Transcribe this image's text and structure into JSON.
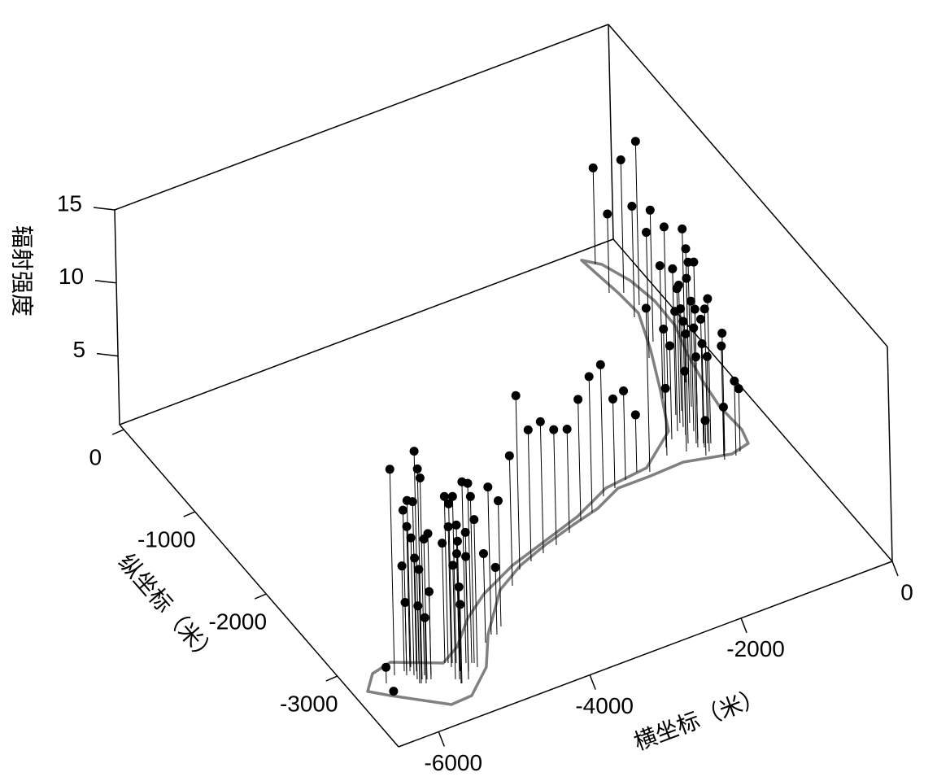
{
  "chart_data": {
    "type": "scatter3d",
    "xlabel": "横坐标（米）",
    "ylabel": "纵坐标（米）",
    "zlabel": "辐射强度",
    "color": "#000000",
    "x": [
      -5952,
      -5603,
      -5711,
      -5652,
      -5830,
      -5719,
      -5697,
      -5762,
      -5757,
      -5819,
      -5795,
      -5760,
      -5754,
      -5771,
      -5706,
      -5622,
      -5662,
      -5587,
      -6103,
      -6136,
      -5311,
      -5270,
      -5230,
      -5132,
      -5075,
      -5051,
      -5313,
      -5267,
      -5343,
      -5259,
      -5178,
      -5378,
      -5338,
      -5248,
      -5357,
      -5349,
      -5054,
      -4762,
      -4635,
      -4578,
      -4467,
      -4002,
      -3788,
      -3604,
      -3412,
      -3212,
      -2976,
      -2757,
      -2573,
      -2319,
      -2135,
      -1959,
      -1776,
      -397,
      -505,
      -359,
      -310,
      -464,
      -488,
      -669,
      -1646,
      -764,
      -883,
      -1272,
      -1335,
      -1145,
      -515,
      -553,
      -894,
      -924,
      -1018,
      -972,
      -669,
      -612,
      -856,
      -886,
      -1018,
      -937,
      -864,
      -791,
      -823,
      -891,
      -956,
      -877,
      -1105,
      -945,
      -723,
      -767,
      -794,
      -645,
      -569,
      -802,
      -826,
      -926
    ],
    "y": [
      -3189,
      -3161,
      -3321,
      -3292,
      -3231,
      -3170,
      -3227,
      -3205,
      -3256,
      -3185,
      -3193,
      -3305,
      -3356,
      -3350,
      -3373,
      -3352,
      -3338,
      -3315,
      -3235,
      -3373,
      -3262,
      -3276,
      -3290,
      -3323,
      -3343,
      -3352,
      -3310,
      -3376,
      -3250,
      -3379,
      -3407,
      -3436,
      -3451,
      -3481,
      -3493,
      -3496,
      -3400,
      -3204,
      -3149,
      -3169,
      -3108,
      -2774,
      -2650,
      -2614,
      -2582,
      -2552,
      -2485,
      -2412,
      -2376,
      -2266,
      -2231,
      -2193,
      -2157,
      -109,
      -419,
      -469,
      -634,
      -730,
      -1018,
      -1154,
      -2202,
      -1517,
      -1575,
      -2034,
      -2112,
      -1979,
      -1504,
      -1590,
      -1769,
      -1858,
      -1924,
      -1990,
      -1748,
      -1767,
      -1980,
      -2069,
      -2073,
      -2101,
      -2126,
      -2151,
      -2140,
      -2166,
      -2144,
      -2220,
      -2142,
      -2246,
      -2274,
      -2308,
      -2348,
      -2350,
      -2327,
      -1751,
      -1891,
      -1906
    ],
    "z": [
      14.4,
      14.8,
      14.7,
      13.8,
      11.6,
      11.7,
      11.9,
      10.2,
      9.7,
      7.5,
      5.0,
      8.6,
      8.1,
      5.6,
      4.8,
      6.3,
      9.9,
      10.0,
      1.4,
      0.6,
      11.7,
      11.2,
      11.7,
      12.7,
      12.6,
      11.7,
      9.9,
      10.3,
      8.5,
      9.2,
      9.8,
      8.1,
      8.9,
      8.7,
      6.9,
      5.7,
      10.4,
      6.4,
      10.4,
      4.9,
      8.9,
      9.2,
      12.2,
      9.3,
      9.3,
      8.2,
      7.4,
      8.6,
      9.6,
      9.3,
      6.4,
      6.4,
      4.2,
      6.9,
      5.7,
      9.4,
      11.5,
      7.9,
      9.3,
      8.9,
      11.5,
      11.5,
      9.4,
      8.4,
      4.9,
      6.7,
      10.8,
      10.0,
      10.3,
      9.5,
      8.5,
      8.1,
      10.2,
      10.2,
      9.2,
      9.2,
      7.8,
      8.2,
      8.8,
      10.2,
      9.5,
      7.4,
      6.5,
      6.8,
      5.8,
      2.7,
      8.4,
      7.8,
      3.9,
      5.4,
      4.6,
      8.9,
      10.2,
      8.4
    ],
    "boundary": {
      "color": "#808080",
      "x": [
        -499,
        -332,
        -188,
        -121,
        -129,
        -253,
        -337,
        -385,
        -363,
        -418,
        -671,
        -1229,
        -1673,
        -2103,
        -2482,
        -2866,
        -3325,
        -3745,
        -4159,
        -4667,
        -4965,
        -5357,
        -5637,
        -6168,
        -6360,
        -6157,
        -5880,
        -5359,
        -5081,
        -4729,
        -4356,
        -3826,
        -3290,
        -2755,
        -2225,
        -1643,
        -1108,
        -837,
        -583,
        -388,
        -415
      ],
      "y": [
        -24,
        -132,
        -379,
        -650,
        -945,
        -1248,
        -1566,
        -1846,
        -2131,
        -2280,
        -2321,
        -2228,
        -2242,
        -2242,
        -2359,
        -2424,
        -2513,
        -2615,
        -2769,
        -3138,
        -3431,
        -3642,
        -3654,
        -3361,
        -3245,
        -3098,
        -3055,
        -3245,
        -3143,
        -2918,
        -2750,
        -2587,
        -2475,
        -2363,
        -2200,
        -2154,
        -1893,
        -1492,
        -1084,
        -706,
        -449
      ]
    },
    "xlim": [
      -6530,
      0
    ],
    "ylim": [
      -3860,
      60
    ],
    "zlim": [
      0.3,
      15
    ],
    "xticks": [
      -6000,
      -4000,
      -2000,
      0
    ],
    "yticks": [
      0,
      -1000,
      -2000,
      -3000
    ],
    "zticks": [
      5,
      10,
      15
    ]
  }
}
